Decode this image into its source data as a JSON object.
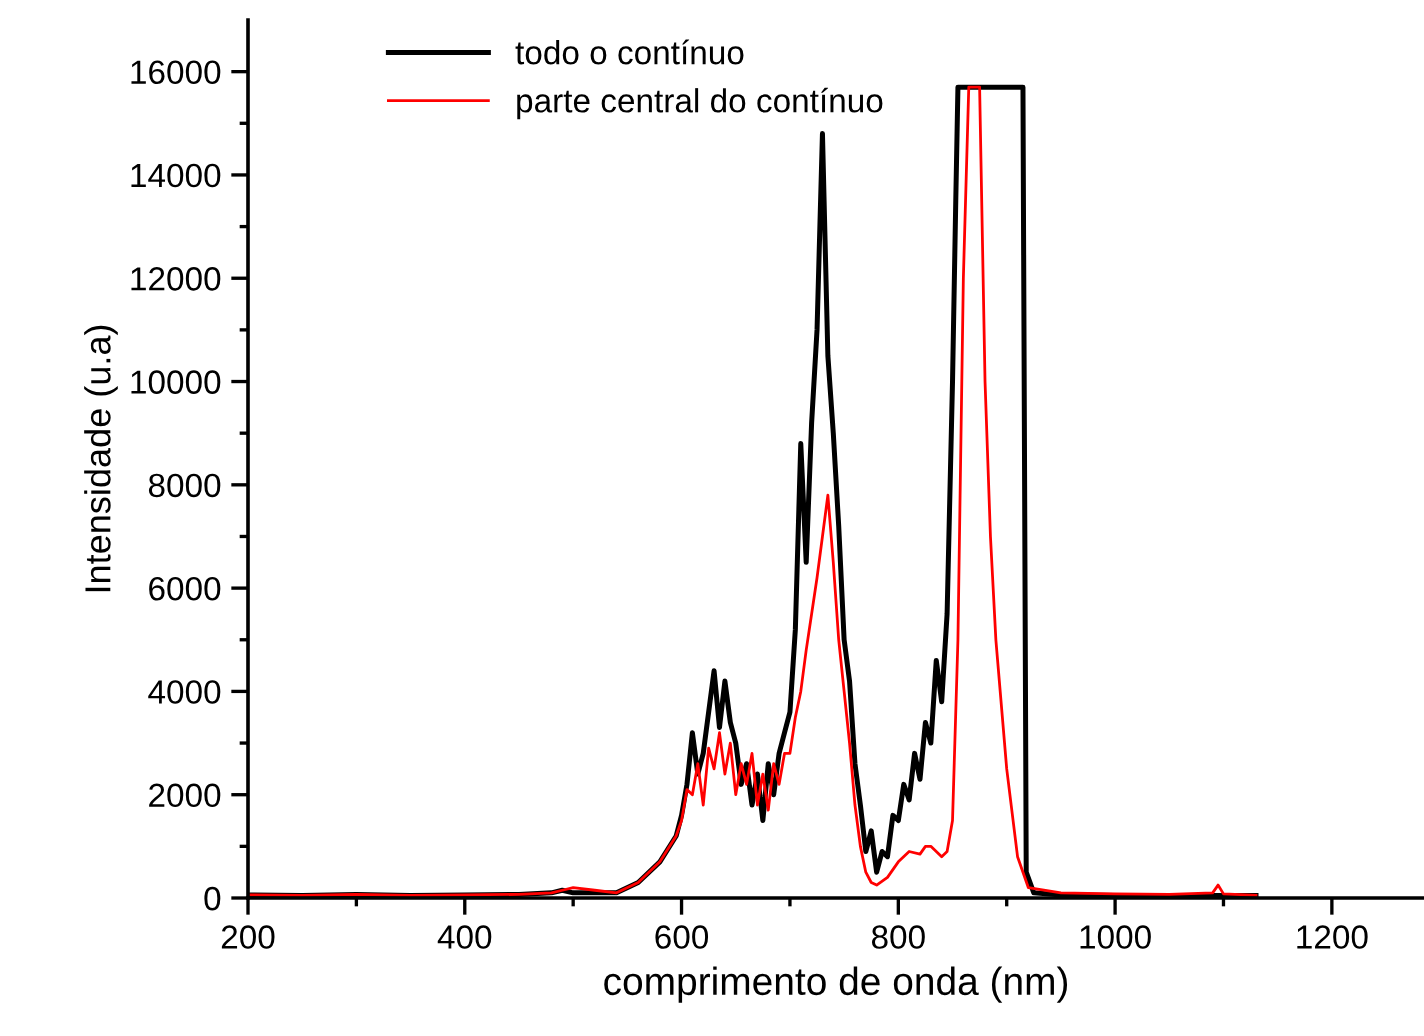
{
  "chart_data": {
    "type": "line",
    "xlabel": "comprimento de onda (nm)",
    "ylabel": "Intensidade (u.a)",
    "xlim": [
      200,
      1285
    ],
    "ylim": [
      0,
      17000
    ],
    "xticks": [
      200,
      {
        "value": 300,
        "label": null
      },
      400,
      {
        "value": 500,
        "label": null
      },
      600,
      {
        "value": 700,
        "label": null
      },
      800,
      {
        "value": 900,
        "label": null
      },
      1000,
      {
        "value": 1100,
        "label": null
      },
      1200
    ],
    "yticks": [
      0,
      {
        "value": 1000,
        "label": null
      },
      2000,
      {
        "value": 3000,
        "label": null
      },
      4000,
      {
        "value": 5000,
        "label": null
      },
      6000,
      {
        "value": 7000,
        "label": null
      },
      8000,
      {
        "value": 9000,
        "label": null
      },
      10000,
      {
        "value": 11000,
        "label": null
      },
      12000,
      {
        "value": 13000,
        "label": null
      },
      14000,
      {
        "value": 15000,
        "label": null
      },
      16000
    ],
    "grid": false,
    "legend": "top",
    "line_style": "solid",
    "marker": "none",
    "series": [
      {
        "name": "todo o contínuo",
        "color": "#000000",
        "x": [
          200,
          250,
          300,
          350,
          400,
          450,
          480,
          490,
          500,
          540,
          560,
          580,
          595,
          600,
          605,
          610,
          615,
          620,
          625,
          630,
          635,
          640,
          645,
          650,
          655,
          660,
          665,
          670,
          675,
          680,
          685,
          690,
          695,
          700,
          705,
          710,
          715,
          720,
          725,
          730,
          735,
          740,
          745,
          750,
          755,
          760,
          765,
          770,
          775,
          780,
          785,
          790,
          795,
          800,
          805,
          810,
          815,
          820,
          825,
          830,
          835,
          840,
          845,
          850,
          853,
          855,
          915,
          918,
          925,
          950,
          1000,
          1050,
          1100,
          1130
        ],
        "values": [
          60,
          50,
          70,
          50,
          60,
          70,
          100,
          150,
          100,
          100,
          300,
          700,
          1200,
          1600,
          2200,
          3200,
          2400,
          2800,
          3600,
          4400,
          3300,
          4200,
          3400,
          3000,
          2200,
          2600,
          1800,
          2400,
          1500,
          2600,
          2000,
          2800,
          3200,
          3600,
          5200,
          8800,
          6500,
          9200,
          11000,
          14800,
          10500,
          9000,
          7200,
          5000,
          4200,
          2600,
          1800,
          900,
          1300,
          500,
          900,
          800,
          1600,
          1500,
          2200,
          1900,
          2800,
          2300,
          3400,
          3000,
          4600,
          3800,
          5500,
          10000,
          13500,
          15700,
          15700,
          500,
          100,
          60,
          50,
          50,
          50,
          50
        ]
      },
      {
        "name": "parte central do contínuo",
        "color": "#ff0000",
        "x": [
          200,
          250,
          300,
          350,
          400,
          450,
          480,
          490,
          500,
          520,
          540,
          560,
          580,
          595,
          600,
          605,
          610,
          615,
          620,
          625,
          630,
          635,
          640,
          645,
          650,
          655,
          660,
          665,
          670,
          675,
          680,
          685,
          690,
          695,
          700,
          705,
          710,
          715,
          720,
          725,
          730,
          735,
          740,
          745,
          750,
          755,
          760,
          765,
          770,
          775,
          780,
          790,
          800,
          810,
          820,
          825,
          830,
          840,
          845,
          850,
          855,
          860,
          865,
          875,
          880,
          885,
          890,
          900,
          910,
          920,
          950,
          1000,
          1050,
          1090,
          1095,
          1100,
          1130
        ],
        "values": [
          60,
          50,
          70,
          50,
          60,
          70,
          100,
          150,
          200,
          150,
          100,
          300,
          700,
          1200,
          1500,
          2100,
          2000,
          2600,
          1800,
          2900,
          2500,
          3200,
          2400,
          3000,
          2000,
          2600,
          2200,
          2800,
          1800,
          2400,
          1700,
          2600,
          2200,
          2800,
          2800,
          3500,
          4000,
          4800,
          5500,
          6200,
          7000,
          7800,
          6500,
          5000,
          4000,
          3000,
          1800,
          1000,
          500,
          300,
          250,
          400,
          700,
          900,
          850,
          1000,
          1000,
          800,
          900,
          1500,
          5000,
          12000,
          15700,
          15700,
          10000,
          7000,
          5000,
          2500,
          800,
          200,
          100,
          80,
          70,
          100,
          250,
          80,
          50
        ]
      }
    ]
  }
}
